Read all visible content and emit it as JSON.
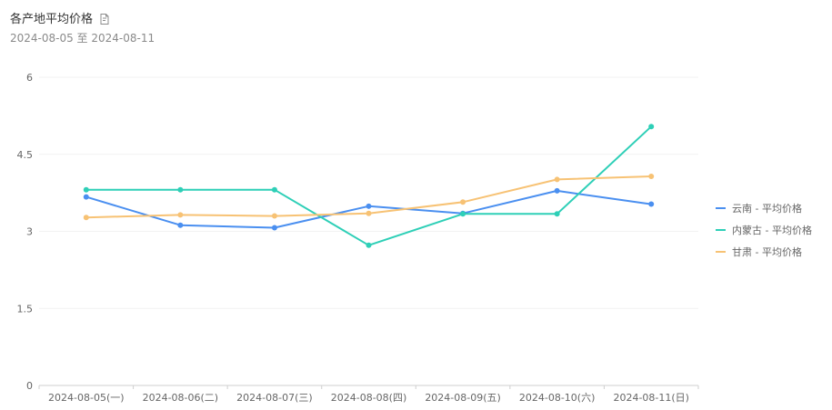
{
  "header": {
    "title": "各产地平均价格",
    "subtitle": "2024-08-05 至 2024-08-11",
    "export_icon": "export-icon"
  },
  "chart_data": {
    "type": "line",
    "title": "各产地平均价格",
    "subtitle": "2024-08-05 至 2024-08-11",
    "xlabel": "",
    "ylabel": "",
    "categories": [
      "2024-08-05(一)",
      "2024-08-06(二)",
      "2024-08-07(三)",
      "2024-08-08(四)",
      "2024-08-09(五)",
      "2024-08-10(六)",
      "2024-08-11(日)"
    ],
    "ylim": [
      0,
      6
    ],
    "yticks": [
      "0",
      "1.5",
      "3",
      "4.5",
      "6"
    ],
    "grid": true,
    "legend_position": "right",
    "series": [
      {
        "name": "云南 - 平均价格",
        "color": "#4a8ff0",
        "values": [
          3.67,
          3.12,
          3.07,
          3.49,
          3.35,
          3.79,
          3.53
        ]
      },
      {
        "name": "内蒙古 - 平均价格",
        "color": "#2ecfb7",
        "values": [
          3.81,
          3.81,
          3.81,
          2.73,
          3.34,
          3.34,
          5.04
        ]
      },
      {
        "name": "甘肃 - 平均价格",
        "color": "#f7c274",
        "values": [
          3.27,
          3.32,
          3.3,
          3.35,
          3.57,
          4.01,
          4.07
        ]
      }
    ]
  }
}
